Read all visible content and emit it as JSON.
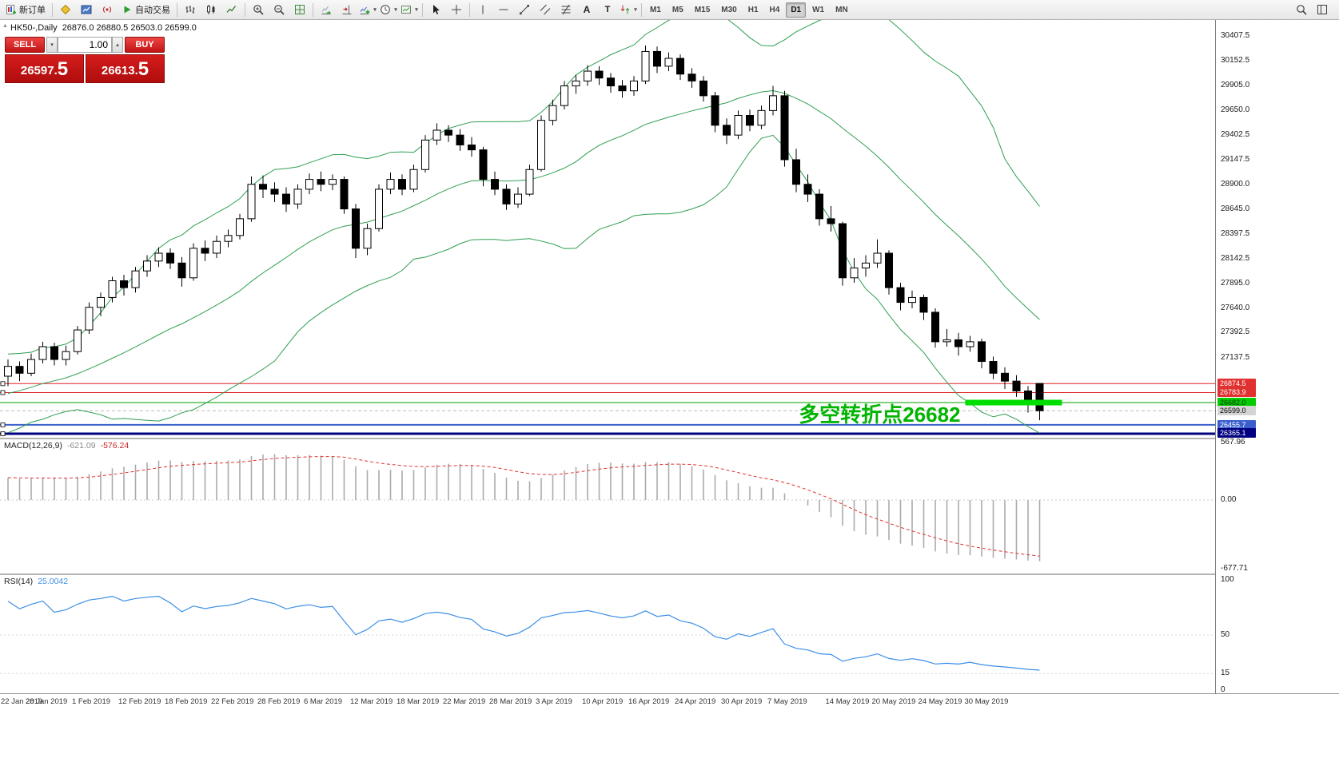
{
  "toolbar": {
    "new_order": "新订单",
    "autotrading": "自动交易",
    "text_tool": "A",
    "label_tool": "T",
    "timeframes": [
      "M1",
      "M5",
      "M15",
      "M30",
      "H1",
      "H4",
      "D1",
      "W1",
      "MN"
    ],
    "active_timeframe": "D1"
  },
  "chart_header": {
    "symbol_period": "HK50-,Daily",
    "ohlc_text": "26876.0 26880.5 26503.0 26599.0"
  },
  "trade_panel": {
    "sell": "SELL",
    "buy": "BUY",
    "volume": "1.00",
    "bid": "26597.5",
    "ask": "26613.5",
    "bid_main": "26597.",
    "bid_big": "5",
    "ask_main": "26613.",
    "ask_big": "5"
  },
  "macd_label": {
    "name": "MACD(12,26,9)",
    "main": "-621.09",
    "signal": "-576.24"
  },
  "rsi_label": {
    "name": "RSI(14)",
    "value": "25.0042"
  },
  "chart_data": {
    "type": "candlestick",
    "symbol": "HK50-",
    "period": "Daily",
    "current_ohlc": {
      "open": 26876.0,
      "high": 26880.5,
      "low": 26503.0,
      "close": 26599.0
    },
    "y_range": [
      26325,
      30570
    ],
    "price_axis_labels": [
      "30407.5",
      "30152.5",
      "29905.0",
      "29650.0",
      "29402.5",
      "29147.5",
      "28900.0",
      "28645.0",
      "28397.5",
      "28142.5",
      "27895.0",
      "27640.0",
      "27392.5",
      "27137.5"
    ],
    "time_labels": [
      {
        "label": "22 Jan 2019",
        "bar": 0
      },
      {
        "label": "28 Jan 2019",
        "bar": 4
      },
      {
        "label": "1 Feb 2019",
        "bar": 8
      },
      {
        "label": "12 Feb 2019",
        "bar": 12
      },
      {
        "label": "18 Feb 2019",
        "bar": 16
      },
      {
        "label": "22 Feb 2019",
        "bar": 20
      },
      {
        "label": "28 Feb 2019",
        "bar": 24
      },
      {
        "label": "6 Mar 2019",
        "bar": 28
      },
      {
        "label": "12 Mar 2019",
        "bar": 32
      },
      {
        "label": "18 Mar 2019",
        "bar": 36
      },
      {
        "label": "22 Mar 2019",
        "bar": 40
      },
      {
        "label": "28 Mar 2019",
        "bar": 44
      },
      {
        "label": "3 Apr 2019",
        "bar": 48
      },
      {
        "label": "10 Apr 2019",
        "bar": 52
      },
      {
        "label": "16 Apr 2019",
        "bar": 56
      },
      {
        "label": "24 Apr 2019",
        "bar": 60
      },
      {
        "label": "30 Apr 2019",
        "bar": 64
      },
      {
        "label": "7 May 2019",
        "bar": 68
      },
      {
        "label": "14 May 2019",
        "bar": 73
      },
      {
        "label": "20 May 2019",
        "bar": 77
      },
      {
        "label": "24 May 2019",
        "bar": 81
      },
      {
        "label": "30 May 2019",
        "bar": 85
      }
    ],
    "bollinger": {
      "period": 20,
      "deviation": 2,
      "color": "#2e9e50"
    },
    "pre_closes": [
      25850,
      25900,
      25980,
      26050,
      26000,
      26100,
      26180,
      26250,
      26200,
      26300,
      26380,
      26450,
      26400,
      26500,
      26550,
      26620,
      26580,
      26650,
      26720,
      26800,
      26750,
      26820,
      26880,
      26950,
      26900,
      26960,
      27000,
      26950,
      26980,
      27000
    ],
    "ohlc": [
      [
        26950,
        27120,
        26850,
        27050
      ],
      [
        27050,
        27100,
        26900,
        26980
      ],
      [
        26980,
        27180,
        26950,
        27120
      ],
      [
        27120,
        27300,
        27080,
        27250
      ],
      [
        27250,
        27290,
        27060,
        27120
      ],
      [
        27120,
        27260,
        27060,
        27200
      ],
      [
        27200,
        27460,
        27170,
        27420
      ],
      [
        27420,
        27700,
        27380,
        27650
      ],
      [
        27650,
        27800,
        27560,
        27750
      ],
      [
        27750,
        27960,
        27700,
        27920
      ],
      [
        27920,
        27980,
        27770,
        27850
      ],
      [
        27850,
        28060,
        27800,
        28020
      ],
      [
        28020,
        28180,
        27960,
        28120
      ],
      [
        28120,
        28260,
        28060,
        28200
      ],
      [
        28200,
        28250,
        28040,
        28100
      ],
      [
        28100,
        28160,
        27860,
        27950
      ],
      [
        27950,
        28300,
        27920,
        28250
      ],
      [
        28250,
        28330,
        28120,
        28200
      ],
      [
        28200,
        28380,
        28150,
        28320
      ],
      [
        28320,
        28440,
        28260,
        28380
      ],
      [
        28380,
        28600,
        28340,
        28550
      ],
      [
        28550,
        28980,
        28520,
        28900
      ],
      [
        28900,
        28990,
        28760,
        28850
      ],
      [
        28850,
        28920,
        28720,
        28800
      ],
      [
        28800,
        28870,
        28620,
        28700
      ],
      [
        28700,
        28900,
        28650,
        28850
      ],
      [
        28850,
        29010,
        28800,
        28950
      ],
      [
        28950,
        29030,
        28830,
        28900
      ],
      [
        28900,
        29000,
        28840,
        28950
      ],
      [
        28950,
        28980,
        28600,
        28650
      ],
      [
        28650,
        28700,
        28150,
        28250
      ],
      [
        28250,
        28500,
        28180,
        28450
      ],
      [
        28450,
        28900,
        28420,
        28850
      ],
      [
        28850,
        29020,
        28800,
        28950
      ],
      [
        28950,
        29000,
        28790,
        28850
      ],
      [
        28850,
        29100,
        28820,
        29050
      ],
      [
        29050,
        29400,
        29020,
        29350
      ],
      [
        29350,
        29520,
        29300,
        29450
      ],
      [
        29450,
        29500,
        29330,
        29400
      ],
      [
        29400,
        29460,
        29240,
        29300
      ],
      [
        29300,
        29380,
        29180,
        29250
      ],
      [
        29250,
        29280,
        28880,
        28950
      ],
      [
        28950,
        29030,
        28790,
        28850
      ],
      [
        28850,
        28900,
        28640,
        28700
      ],
      [
        28700,
        28870,
        28660,
        28800
      ],
      [
        28800,
        29100,
        28780,
        29050
      ],
      [
        29050,
        29600,
        29030,
        29550
      ],
      [
        29550,
        29760,
        29500,
        29700
      ],
      [
        29700,
        29950,
        29660,
        29900
      ],
      [
        29900,
        30010,
        29820,
        29950
      ],
      [
        29950,
        30110,
        29900,
        30050
      ],
      [
        30050,
        30100,
        29910,
        29980
      ],
      [
        29980,
        30030,
        29830,
        29900
      ],
      [
        29900,
        29960,
        29780,
        29850
      ],
      [
        29850,
        30000,
        29800,
        29950
      ],
      [
        29950,
        30310,
        29920,
        30250
      ],
      [
        30250,
        30300,
        30030,
        30100
      ],
      [
        30100,
        30240,
        30050,
        30180
      ],
      [
        30180,
        30220,
        29960,
        30020
      ],
      [
        30020,
        30080,
        29880,
        29950
      ],
      [
        29950,
        30000,
        29740,
        29800
      ],
      [
        29800,
        29840,
        29430,
        29500
      ],
      [
        29500,
        29570,
        29310,
        29400
      ],
      [
        29400,
        29650,
        29360,
        29600
      ],
      [
        29600,
        29660,
        29440,
        29500
      ],
      [
        29500,
        29700,
        29460,
        29650
      ],
      [
        29650,
        29900,
        29600,
        29800
      ],
      [
        29800,
        29850,
        29080,
        29150
      ],
      [
        29150,
        29260,
        28820,
        28900
      ],
      [
        28900,
        29000,
        28720,
        28800
      ],
      [
        28800,
        28850,
        28480,
        28550
      ],
      [
        28550,
        28680,
        28420,
        28500
      ],
      [
        28500,
        28520,
        27870,
        27950
      ],
      [
        27950,
        28150,
        27900,
        28050
      ],
      [
        28050,
        28180,
        27960,
        28100
      ],
      [
        28100,
        28340,
        28050,
        28200
      ],
      [
        28200,
        28230,
        27780,
        27850
      ],
      [
        27850,
        27900,
        27620,
        27700
      ],
      [
        27700,
        27820,
        27640,
        27750
      ],
      [
        27750,
        27780,
        27520,
        27600
      ],
      [
        27600,
        27640,
        27240,
        27300
      ],
      [
        27300,
        27430,
        27250,
        27320
      ],
      [
        27320,
        27390,
        27160,
        27250
      ],
      [
        27250,
        27360,
        27200,
        27300
      ],
      [
        27300,
        27330,
        27030,
        27100
      ],
      [
        27100,
        27150,
        26920,
        26980
      ],
      [
        26980,
        27040,
        26820,
        26900
      ],
      [
        26900,
        26960,
        26740,
        26800
      ],
      [
        26800,
        26850,
        26580,
        26680
      ],
      [
        26876,
        26880.5,
        26503,
        26599
      ]
    ],
    "hlines": [
      {
        "price": 26874.5,
        "color": "#e02020",
        "width": 1,
        "handles": true
      },
      {
        "price": 26783.9,
        "color": "#e02020",
        "width": 1,
        "handles": true
      },
      {
        "price": 26682.0,
        "color": "#00a000",
        "width": 1
      },
      {
        "price": 26599.0,
        "color": "#bcbcbc",
        "width": 1,
        "dash": "4 3"
      },
      {
        "price": 26455.7,
        "color": "#3a5fcd",
        "width": 2,
        "handles": true
      },
      {
        "price": 26365.1,
        "color": "#000080",
        "width": 3,
        "handles": true
      }
    ],
    "price_markers": [
      {
        "label": "26874.5",
        "price": 26874.5,
        "bg": "#e03030",
        "fg": "#ffffff"
      },
      {
        "label": "26783.9",
        "price": 26783.9,
        "bg": "#e03030",
        "fg": "#ffffff"
      },
      {
        "label": "26682.0",
        "price": 26682.0,
        "bg": "#00cc00",
        "fg": "#063306"
      },
      {
        "label": "26599.0",
        "price": 26599.0,
        "bg": "#d4d4d4",
        "fg": "#000000"
      },
      {
        "label": "26455.7",
        "price": 26455.7,
        "bg": "#3a5fcd",
        "fg": "#ffffff"
      },
      {
        "label": "26365.1",
        "price": 26365.1,
        "bg": "#000080",
        "fg": "#ffffff"
      }
    ],
    "annotation": {
      "text": "多空转折点26682",
      "price": 26682,
      "from_bar": 83,
      "color": "#00b400",
      "segment_color": "#00dd00"
    },
    "macd": {
      "params": [
        12,
        26,
        9
      ],
      "last_main": -621.09,
      "last_signal": -576.24,
      "axis": [
        {
          "v": 567.96,
          "label": "567.96"
        },
        {
          "v": 0,
          "label": "0.00"
        },
        {
          "v": -677.71,
          "label": "-677.71"
        }
      ],
      "histogram_color": "#ababab",
      "signal_color": "#e03232"
    },
    "rsi": {
      "params": [
        14
      ],
      "last": 25.0042,
      "axis": [
        {
          "v": 100,
          "label": "100"
        },
        {
          "v": 50,
          "label": "50"
        },
        {
          "v": 15,
          "label": "15"
        },
        {
          "v": 0,
          "label": "0"
        }
      ],
      "levels": [
        50,
        15
      ],
      "color": "#3b8fe8"
    }
  }
}
